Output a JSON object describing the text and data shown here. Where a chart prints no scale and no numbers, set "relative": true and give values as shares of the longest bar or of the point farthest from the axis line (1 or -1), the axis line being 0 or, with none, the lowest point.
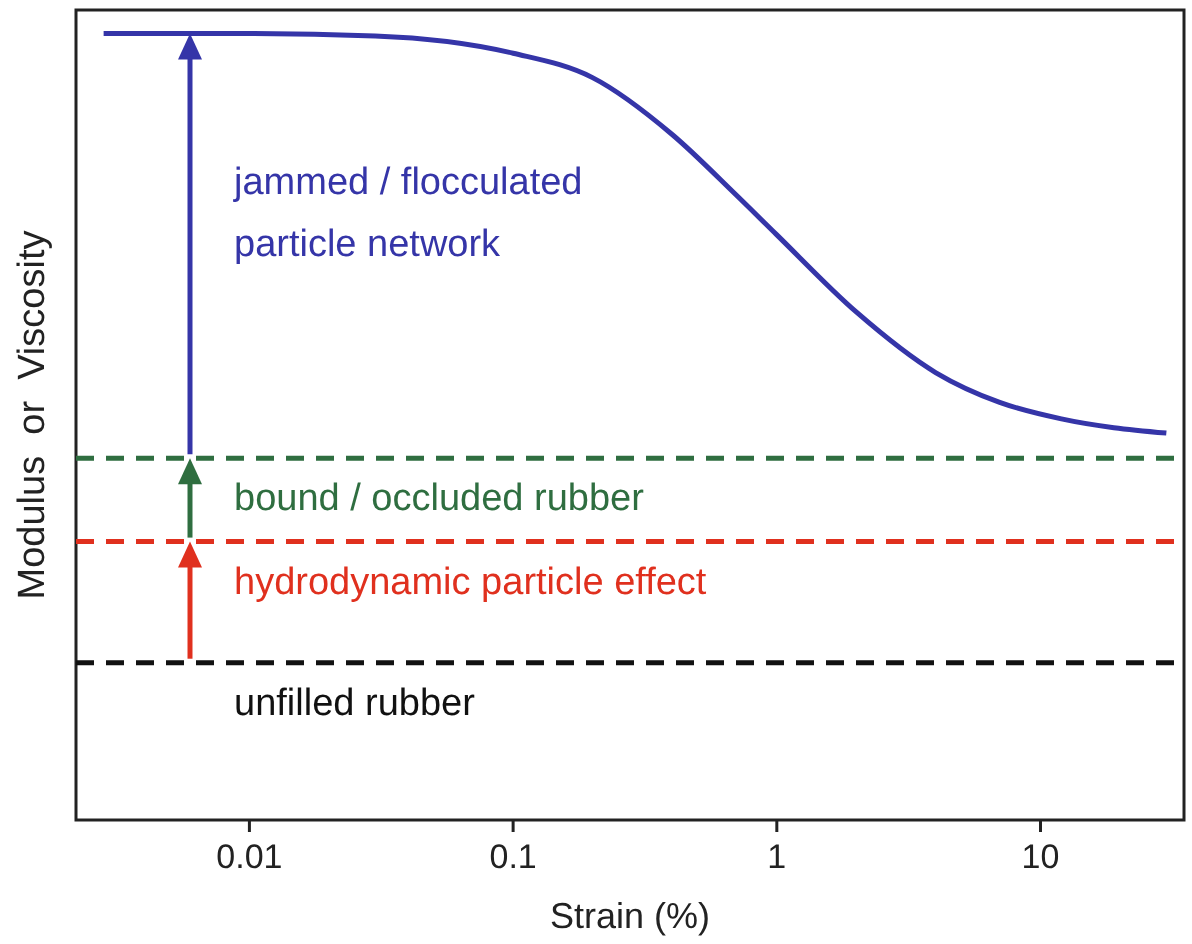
{
  "chart_data": {
    "type": "line",
    "relative": true,
    "log": "x",
    "xlabel": "Strain (%)",
    "ylabel": "Modulus  or  Viscosity",
    "xlim": [
      0.0022,
      35
    ],
    "xticks": [
      0.01,
      0.1,
      1,
      10
    ],
    "tick_labels": "x",
    "grid": false,
    "series": [
      {
        "color": "#3535a8",
        "line_style": "solid",
        "x": [
          0.0028,
          0.01,
          0.03,
          0.1,
          0.2,
          0.4,
          0.7,
          1,
          2,
          4,
          7,
          12,
          30
        ],
        "values": [
          1,
          1,
          0.997,
          0.975,
          0.944,
          0.872,
          0.795,
          0.744,
          0.646,
          0.569,
          0.531,
          0.51,
          0.492
        ]
      },
      {
        "color": "#2f6e40",
        "line_style": "dashed",
        "x": [
          0.0022,
          35
        ],
        "values": [
          0.46,
          0.46
        ]
      },
      {
        "color": "#e0301e",
        "line_style": "dashed",
        "x": [
          0.0022,
          35
        ],
        "values": [
          0.354,
          0.354
        ]
      },
      {
        "color": "#111111",
        "line_style": "dashed",
        "x": [
          0.0022,
          35
        ],
        "values": [
          0.2,
          0.2
        ]
      }
    ],
    "annotations": [
      "jammed / flocculated\nparticle network",
      "bound / occluded rubber",
      "hydrodynamic particle effect",
      "unfilled rubber"
    ]
  }
}
